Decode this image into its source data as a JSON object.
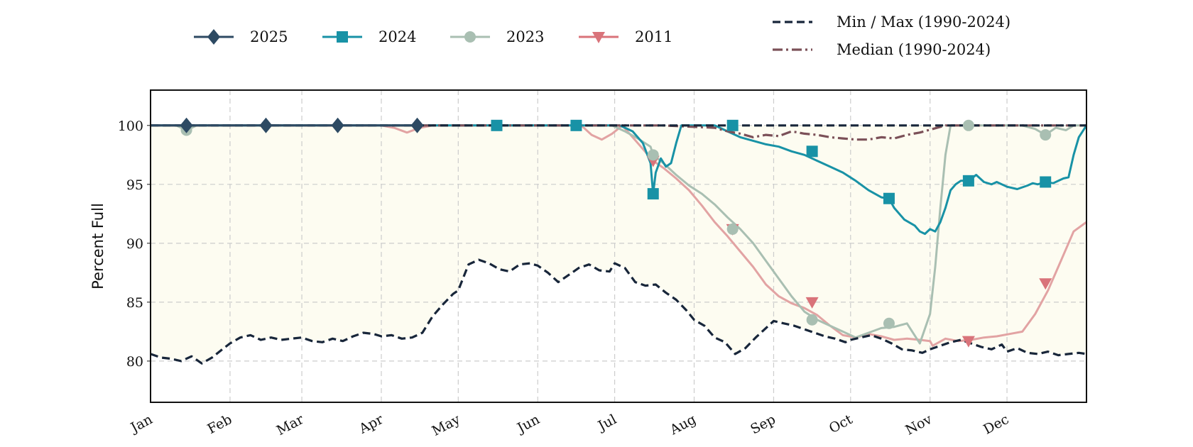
{
  "chart_data": {
    "type": "line",
    "ylabel": "Percent Full",
    "xlabel": "",
    "ylim": [
      76.5,
      103
    ],
    "xlim": [
      0,
      365
    ],
    "yticks": [
      80,
      85,
      90,
      95,
      100
    ],
    "month_ticks": [
      {
        "label": "Jan",
        "day": 0
      },
      {
        "label": "Feb",
        "day": 31
      },
      {
        "label": "Mar",
        "day": 59
      },
      {
        "label": "Apr",
        "day": 90
      },
      {
        "label": "May",
        "day": 120
      },
      {
        "label": "Jun",
        "day": 151
      },
      {
        "label": "Jul",
        "day": 181
      },
      {
        "label": "Aug",
        "day": 212
      },
      {
        "label": "Sep",
        "day": 243
      },
      {
        "label": "Oct",
        "day": 273
      },
      {
        "label": "Nov",
        "day": 304
      },
      {
        "label": "Dec",
        "day": 334
      }
    ],
    "grid": true,
    "legend_placement": "top",
    "fill_between": {
      "lower": "min",
      "upper": "max",
      "color": "#fdfcf1"
    },
    "series": [
      {
        "name": "Min / Max (1990-2024)",
        "key": "min",
        "color": "#18263a",
        "style": "dashed",
        "marker": "none",
        "x": [
          0,
          4,
          8,
          12,
          16,
          20,
          24,
          28,
          31,
          35,
          39,
          43,
          47,
          51,
          55,
          59,
          63,
          67,
          71,
          75,
          79,
          83,
          87,
          90,
          94,
          98,
          102,
          106,
          110,
          114,
          118,
          120,
          124,
          128,
          132,
          136,
          140,
          144,
          148,
          151,
          155,
          159,
          163,
          167,
          171,
          175,
          179,
          181,
          185,
          189,
          193,
          197,
          201,
          205,
          209,
          212,
          216,
          220,
          224,
          228,
          232,
          236,
          240,
          243,
          247,
          251,
          255,
          259,
          263,
          267,
          271,
          273,
          277,
          281,
          285,
          289,
          293,
          297,
          301,
          304,
          308,
          312,
          316,
          320,
          324,
          328,
          332,
          334,
          338,
          342,
          346,
          350,
          354,
          358,
          362,
          365
        ],
        "y": [
          80.6,
          80.3,
          80.2,
          80.0,
          80.4,
          79.8,
          80.3,
          81.0,
          81.5,
          82.0,
          82.2,
          81.8,
          82.0,
          81.8,
          81.9,
          82.0,
          81.7,
          81.6,
          81.9,
          81.7,
          82.1,
          82.4,
          82.3,
          82.1,
          82.2,
          81.9,
          82.0,
          82.4,
          83.8,
          84.8,
          85.7,
          86.0,
          88.2,
          88.6,
          88.3,
          87.8,
          87.6,
          88.2,
          88.3,
          88.1,
          87.5,
          86.7,
          87.3,
          87.9,
          88.2,
          87.7,
          87.6,
          88.3,
          87.9,
          86.7,
          86.4,
          86.5,
          85.8,
          85.2,
          84.3,
          83.5,
          83.0,
          82.0,
          81.6,
          80.6,
          81.1,
          82.0,
          82.8,
          83.4,
          83.2,
          83.0,
          82.7,
          82.4,
          82.1,
          81.9,
          81.6,
          81.8,
          82.0,
          82.2,
          81.9,
          81.5,
          81.0,
          80.9,
          80.7,
          81.0,
          81.3,
          81.6,
          81.8,
          81.5,
          81.2,
          81.0,
          81.4,
          80.8,
          81.1,
          80.7,
          80.6,
          80.8,
          80.5,
          80.6,
          80.7,
          80.6
        ]
      },
      {
        "name": "",
        "key": "max",
        "color": "#18263a",
        "style": "dashed",
        "marker": "none",
        "x": [
          0,
          365
        ],
        "y": [
          100,
          100
        ]
      },
      {
        "name": "Median (1990-2024)",
        "key": "median",
        "color": "#7b5058",
        "style": "dashdot",
        "marker": "none",
        "x": [
          0,
          40,
          80,
          120,
          160,
          200,
          220,
          225,
          230,
          235,
          240,
          245,
          250,
          255,
          260,
          265,
          270,
          275,
          280,
          285,
          290,
          295,
          300,
          305,
          310,
          320,
          330,
          340,
          350,
          365
        ],
        "y": [
          100,
          100,
          100,
          100,
          100,
          100,
          99.8,
          99.5,
          99.3,
          99.0,
          99.2,
          99.1,
          99.5,
          99.3,
          99.2,
          99.0,
          98.9,
          98.8,
          98.8,
          99.0,
          98.9,
          99.2,
          99.4,
          99.7,
          100,
          100,
          100,
          100,
          100,
          100
        ]
      },
      {
        "name": "2011",
        "key": "y2011",
        "color": "#d9737a",
        "line_color": "#e2a3a3",
        "style": "solid",
        "marker": "triangle-down",
        "x": [
          0,
          40,
          80,
          90,
          95,
          100,
          105,
          110,
          140,
          150,
          168,
          172,
          176,
          180,
          184,
          190,
          196,
          200,
          205,
          210,
          215,
          220,
          225,
          230,
          235,
          240,
          245,
          250,
          255,
          260,
          265,
          270,
          275,
          280,
          285,
          290,
          295,
          300,
          304,
          305,
          310,
          315,
          320,
          325,
          330,
          335,
          340,
          345,
          350,
          355,
          360,
          365
        ],
        "y": [
          100,
          100,
          100,
          100,
          99.8,
          99.4,
          99.8,
          100,
          100,
          100,
          100,
          99.2,
          98.8,
          99.3,
          100,
          98.5,
          97.0,
          96.4,
          95.5,
          94.5,
          93.2,
          91.8,
          90.6,
          89.3,
          88.0,
          86.5,
          85.5,
          84.9,
          84.5,
          83.9,
          83.0,
          82.2,
          82.0,
          82.3,
          82.1,
          81.8,
          81.9,
          81.8,
          81.7,
          81.3,
          81.9,
          81.7,
          81.8,
          82.0,
          82.1,
          82.3,
          82.5,
          84.0,
          86.0,
          88.5,
          91.0,
          91.8
        ],
        "markers_x": [
          196,
          227,
          258,
          319,
          349
        ],
        "markers_y": [
          97.0,
          91.2,
          85.0,
          81.7,
          86.6
        ]
      },
      {
        "name": "2023",
        "key": "y2023",
        "color": "#a9bfb2",
        "style": "solid",
        "marker": "circle",
        "x": [
          0,
          10,
          14,
          18,
          30,
          60,
          90,
          120,
          150,
          180,
          185,
          190,
          195,
          196,
          200,
          205,
          210,
          215,
          220,
          225,
          230,
          235,
          240,
          245,
          250,
          255,
          260,
          265,
          270,
          275,
          280,
          285,
          290,
          295,
          300,
          304,
          306,
          308,
          310,
          312,
          315,
          320,
          330,
          340,
          345,
          349,
          353,
          357,
          360,
          365
        ],
        "y": [
          100,
          100,
          99.6,
          100,
          100,
          100,
          100,
          100,
          100,
          100,
          99.5,
          98.9,
          98.2,
          97.5,
          96.8,
          95.8,
          94.9,
          94.2,
          93.3,
          92.2,
          91.2,
          90.0,
          88.5,
          87.0,
          85.5,
          84.2,
          83.5,
          83.0,
          82.5,
          82.0,
          82.4,
          82.8,
          82.9,
          83.2,
          81.5,
          84.0,
          88.0,
          93.0,
          97.5,
          100,
          100,
          100,
          100,
          100,
          99.7,
          99.2,
          99.8,
          99.6,
          100,
          100
        ],
        "markers_x": [
          14,
          196,
          227,
          258,
          288,
          319,
          349
        ],
        "markers_y": [
          99.6,
          97.5,
          91.2,
          83.5,
          83.2,
          100,
          99.2
        ]
      },
      {
        "name": "2024",
        "key": "y2024",
        "color": "#1892a6",
        "style": "solid",
        "marker": "square",
        "x": [
          0,
          100,
          150,
          180,
          183,
          188,
          192,
          195,
          196,
          197,
          199,
          201,
          203,
          205,
          207,
          210,
          213,
          215,
          217,
          220,
          225,
          230,
          235,
          240,
          245,
          250,
          255,
          260,
          265,
          270,
          275,
          280,
          285,
          288,
          290,
          294,
          298,
          300,
          302,
          304,
          306,
          308,
          310,
          312,
          314,
          316,
          319,
          322,
          325,
          328,
          330,
          334,
          338,
          342,
          344,
          346,
          349,
          352,
          356,
          358,
          360,
          362,
          365
        ],
        "y": [
          100,
          100,
          100,
          100,
          100,
          99.5,
          98.5,
          96.8,
          94.2,
          96.0,
          97.2,
          96.5,
          96.8,
          98.5,
          100,
          100,
          100,
          100,
          100,
          100,
          99.5,
          99.0,
          98.7,
          98.4,
          98.2,
          97.8,
          97.5,
          97.0,
          96.5,
          96.0,
          95.3,
          94.5,
          93.9,
          93.8,
          93.0,
          92.0,
          91.5,
          91.0,
          90.8,
          91.2,
          91.0,
          91.8,
          93.0,
          94.5,
          95.0,
          95.3,
          95.3,
          95.8,
          95.2,
          95.0,
          95.2,
          94.8,
          94.6,
          94.9,
          95.1,
          95.0,
          95.2,
          95.1,
          95.5,
          95.6,
          97.5,
          99.0,
          100
        ],
        "markers_x": [
          196,
          227,
          258,
          288,
          319,
          349,
          135,
          166
        ],
        "markers_y": [
          94.2,
          100,
          97.8,
          93.8,
          95.3,
          95.2,
          100,
          100
        ]
      },
      {
        "name": "2025",
        "key": "y2025",
        "color": "#2d4a63",
        "style": "solid",
        "marker": "diamond",
        "x": [
          0,
          14,
          45,
          73,
          104,
          105
        ],
        "y": [
          100,
          100,
          100,
          100,
          100,
          100
        ],
        "markers_x": [
          14,
          45,
          73,
          104
        ],
        "markers_y": [
          100,
          100,
          100,
          100
        ]
      }
    ]
  },
  "legend": {
    "left": [
      {
        "label": "2025",
        "marker": "diamond",
        "color": "#2d4a63"
      },
      {
        "label": "2024",
        "marker": "square",
        "color": "#1892a6"
      },
      {
        "label": "2023",
        "marker": "circle",
        "color": "#a9bfb2"
      },
      {
        "label": "2011",
        "marker": "triangle-down",
        "color": "#d9737a"
      }
    ],
    "right": [
      {
        "label": "Min / Max (1990-2024)",
        "style": "dashed",
        "color": "#18263a"
      },
      {
        "label": "Median (1990-2024)",
        "style": "dashdot",
        "color": "#7b5058"
      }
    ]
  }
}
